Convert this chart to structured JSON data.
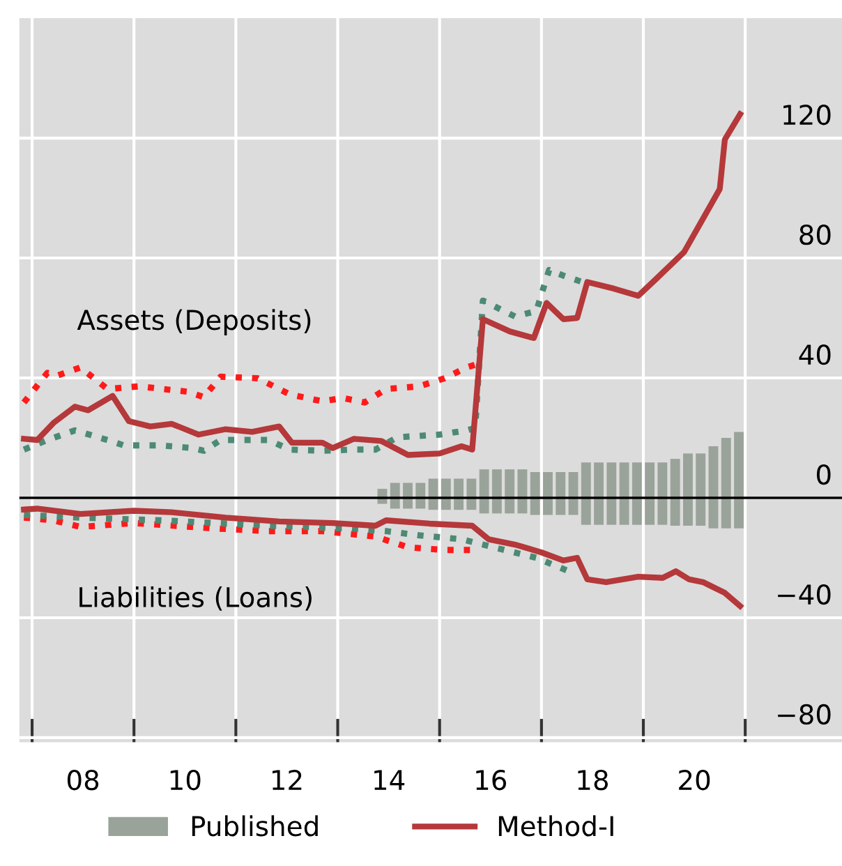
{
  "chart_data": {
    "type": "line",
    "xlim": [
      2006.75,
      2022.9
    ],
    "ylim": [
      -81.5,
      160
    ],
    "xticks": [
      {
        "value": 2007,
        "label": null
      },
      {
        "value": 2008,
        "label": "08"
      },
      {
        "value": 2009,
        "label": null
      },
      {
        "value": 2010,
        "label": "10"
      },
      {
        "value": 2011,
        "label": null
      },
      {
        "value": 2012,
        "label": "12"
      },
      {
        "value": 2013,
        "label": null
      },
      {
        "value": 2014,
        "label": "14"
      },
      {
        "value": 2015,
        "label": null
      },
      {
        "value": 2016,
        "label": "16"
      },
      {
        "value": 2017,
        "label": null
      },
      {
        "value": 2018,
        "label": "18"
      },
      {
        "value": 2019,
        "label": null
      },
      {
        "value": 2020,
        "label": "20"
      },
      {
        "value": 2021,
        "label": null
      }
    ],
    "stacked": true,
    "yticks": [
      {
        "value": -80,
        "label": "−80"
      },
      {
        "value": -40,
        "label": "−40"
      },
      0,
      40,
      80,
      120
    ],
    "grid": true,
    "legend": "bottom",
    "ref_lines": [
      {
        "axis": "y",
        "value": 0,
        "color": "#000000"
      }
    ],
    "annotations": [
      "Assets (Deposits)",
      "Liabilities (Loans)"
    ],
    "series": [
      {
        "name": "Published",
        "type": "bar",
        "color": "#9aa39a",
        "x": [
          2013.875,
          2014.125,
          2014.375,
          2014.625,
          2014.875,
          2015.125,
          2015.375,
          2015.625,
          2015.875,
          2016.125,
          2016.375,
          2016.625,
          2016.875,
          2017.125,
          2017.375,
          2017.625,
          2017.875,
          2018.125,
          2018.375,
          2018.625,
          2018.875,
          2019.125,
          2019.375,
          2019.625,
          2019.875,
          2020.125,
          2020.375,
          2020.625,
          2020.875
        ],
        "values": [
          3,
          5,
          5,
          5,
          6.4,
          6.4,
          6.4,
          6.4,
          9.5,
          9.5,
          9.5,
          9.5,
          8.6,
          8.6,
          8.6,
          8.6,
          11.8,
          11.8,
          11.8,
          11.8,
          11.8,
          11.8,
          11.8,
          13,
          14.8,
          14.8,
          17.2,
          20,
          22
        ]
      },
      {
        "type": "bar",
        "color": "#9aa39a",
        "x": [
          2013.875,
          2014.125,
          2014.375,
          2014.625,
          2014.875,
          2015.125,
          2015.375,
          2015.625,
          2015.875,
          2016.125,
          2016.375,
          2016.625,
          2016.875,
          2017.125,
          2017.375,
          2017.625,
          2017.875,
          2018.125,
          2018.375,
          2018.625,
          2018.875,
          2019.125,
          2019.375,
          2019.625,
          2019.875,
          2020.125,
          2020.375,
          2020.625,
          2020.875
        ],
        "values": [
          -2,
          -3.6,
          -3.6,
          -3.6,
          -4,
          -4,
          -4,
          -4,
          -5.2,
          -5.2,
          -5.2,
          -5.2,
          -5.7,
          -5.7,
          -5.7,
          -5.7,
          -9,
          -9,
          -9,
          -9,
          -9,
          -9,
          -9,
          -9.3,
          -9.3,
          -9.3,
          -10.2,
          -10.2,
          -10.2
        ]
      },
      {
        "line_style": "dotted",
        "color": "#ff1a1a",
        "x": [
          2006.84,
          2007.3,
          2007.5,
          2007.95,
          2008.48,
          2009.1,
          2010.05,
          2010.37,
          2010.7,
          2011.43,
          2012.06,
          2012.7,
          2013.1,
          2013.53,
          2013.95,
          2014.6,
          2015.1,
          2015.53,
          2015.7
        ],
        "values": [
          31.8,
          41.7,
          40.8,
          43.5,
          36.3,
          37.2,
          35.4,
          33.6,
          40.4,
          39.9,
          34.5,
          32.2,
          33.3,
          31.8,
          36.3,
          37.2,
          39.9,
          43.5,
          44.4
        ]
      },
      {
        "line_style": "dotted",
        "color": "#4c8a74",
        "x": [
          2006.84,
          2007.3,
          2007.84,
          2008.48,
          2008.8,
          2009.53,
          2010.16,
          2010.37,
          2010.7,
          2011.64,
          2012.06,
          2012.7,
          2013.32,
          2013.74,
          2014.17,
          2015.0,
          2015.53,
          2015.7,
          2015.85,
          2016.48,
          2016.9,
          2017.06,
          2017.15,
          2017.45,
          2017.8
        ],
        "values": [
          16.1,
          19.3,
          22.5,
          19.3,
          17.5,
          17.5,
          16.6,
          15.7,
          19.3,
          19.3,
          16.1,
          15.7,
          16.1,
          16.1,
          20.2,
          21.1,
          22.5,
          23.3,
          65.8,
          60.5,
          62.3,
          71.2,
          76,
          74,
          72
        ]
      },
      {
        "line_style": "dotted",
        "color": "#ff1a1a",
        "x": [
          2006.84,
          2007.42,
          2007.95,
          2009.0,
          2010.58,
          2011.64,
          2012.7,
          2013.74,
          2014.38,
          2015.1,
          2015.64
        ],
        "values": [
          -6.6,
          -7.5,
          -9.7,
          -8.4,
          -10.2,
          -11.1,
          -11.1,
          -12.9,
          -16.5,
          -17.4,
          -17.4
        ]
      },
      {
        "line_style": "dotted",
        "color": "#4c8a74",
        "x": [
          2006.84,
          2007.95,
          2009.53,
          2011.64,
          2013.22,
          2013.95,
          2014.6,
          2015.43,
          2016.06,
          2016.9,
          2017.54
        ],
        "values": [
          -5.7,
          -6.6,
          -7.5,
          -9.3,
          -10.2,
          -11.1,
          -12.5,
          -13.8,
          -16.5,
          -20,
          -24.5
        ]
      },
      {
        "name": "Method-I",
        "line_style": "solid",
        "color": "#b5383a",
        "x": [
          2006.84,
          2007.1,
          2007.42,
          2007.84,
          2008.1,
          2008.58,
          2008.9,
          2009.32,
          2009.74,
          2010.27,
          2010.8,
          2011.32,
          2011.85,
          2012.1,
          2012.7,
          2012.9,
          2013.32,
          2013.85,
          2014.38,
          2015.0,
          2015.43,
          2015.64,
          2015.85,
          2016.38,
          2016.85,
          2017.1,
          2017.43,
          2017.7,
          2017.9,
          2018.42,
          2018.9,
          2019.25,
          2019.8,
          2020.2,
          2020.5,
          2020.6,
          2020.9
        ],
        "values": [
          19.7,
          19.3,
          25,
          30.4,
          29.2,
          34,
          25.6,
          23.8,
          24.7,
          21.1,
          22.9,
          22,
          23.8,
          18.4,
          18.4,
          16.6,
          19.7,
          19,
          14.3,
          14.8,
          17.2,
          16.1,
          59.6,
          55.5,
          53.3,
          65,
          59.6,
          60,
          72,
          69.8,
          67.4,
          73,
          82,
          94,
          103,
          119.5,
          128
        ]
      },
      {
        "line_style": "solid",
        "color": "#b5383a",
        "x": [
          2006.84,
          2007.1,
          2007.95,
          2009.0,
          2009.74,
          2010.8,
          2011.85,
          2012.9,
          2013.74,
          2013.95,
          2014.8,
          2015.64,
          2015.96,
          2016.48,
          2017.0,
          2017.43,
          2017.7,
          2017.9,
          2018.27,
          2018.9,
          2019.38,
          2019.64,
          2019.9,
          2020.17,
          2020.6,
          2020.9
        ],
        "values": [
          -3.9,
          -3.6,
          -5.4,
          -4.3,
          -4.8,
          -6.6,
          -7.9,
          -8.4,
          -9.3,
          -7.5,
          -8.6,
          -9.3,
          -13.8,
          -15.6,
          -18.2,
          -20.9,
          -20,
          -27.2,
          -28.1,
          -26.3,
          -26.7,
          -24.5,
          -27.2,
          -28.1,
          -31.7,
          -36.1
        ]
      }
    ]
  }
}
